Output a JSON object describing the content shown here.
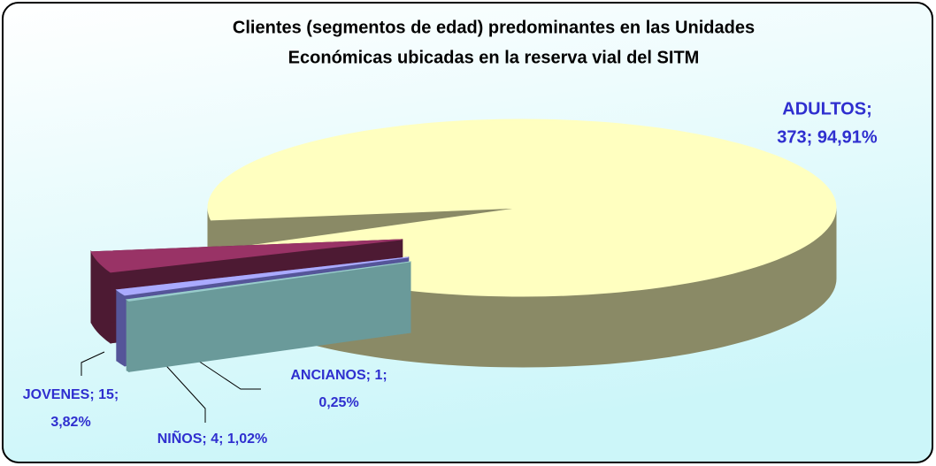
{
  "chart_data": {
    "type": "pie3d",
    "title": [
      "Clientes (segmentos de edad) predominantes en las Unidades",
      "Económicas ubicadas en la reserva vial del SITM"
    ],
    "values": [
      373,
      15,
      4,
      1
    ],
    "value_labels": [
      [
        "ADULTOS;",
        "373; 94,91%"
      ],
      [
        "JOVENES; 15;",
        "3,82%"
      ],
      [
        "NIÑOS; 4; 1,02%"
      ],
      [
        "ANCIANOS; 1;",
        "0,25%"
      ]
    ],
    "colors": [
      "#ffffc0",
      "#993366",
      "#aaaaff",
      "#99cccc"
    ],
    "side_colors": [
      "#8a8a66",
      "#4d1a33",
      "#555599",
      "#6a9a9a"
    ],
    "label_color": "#2f2fcf"
  }
}
